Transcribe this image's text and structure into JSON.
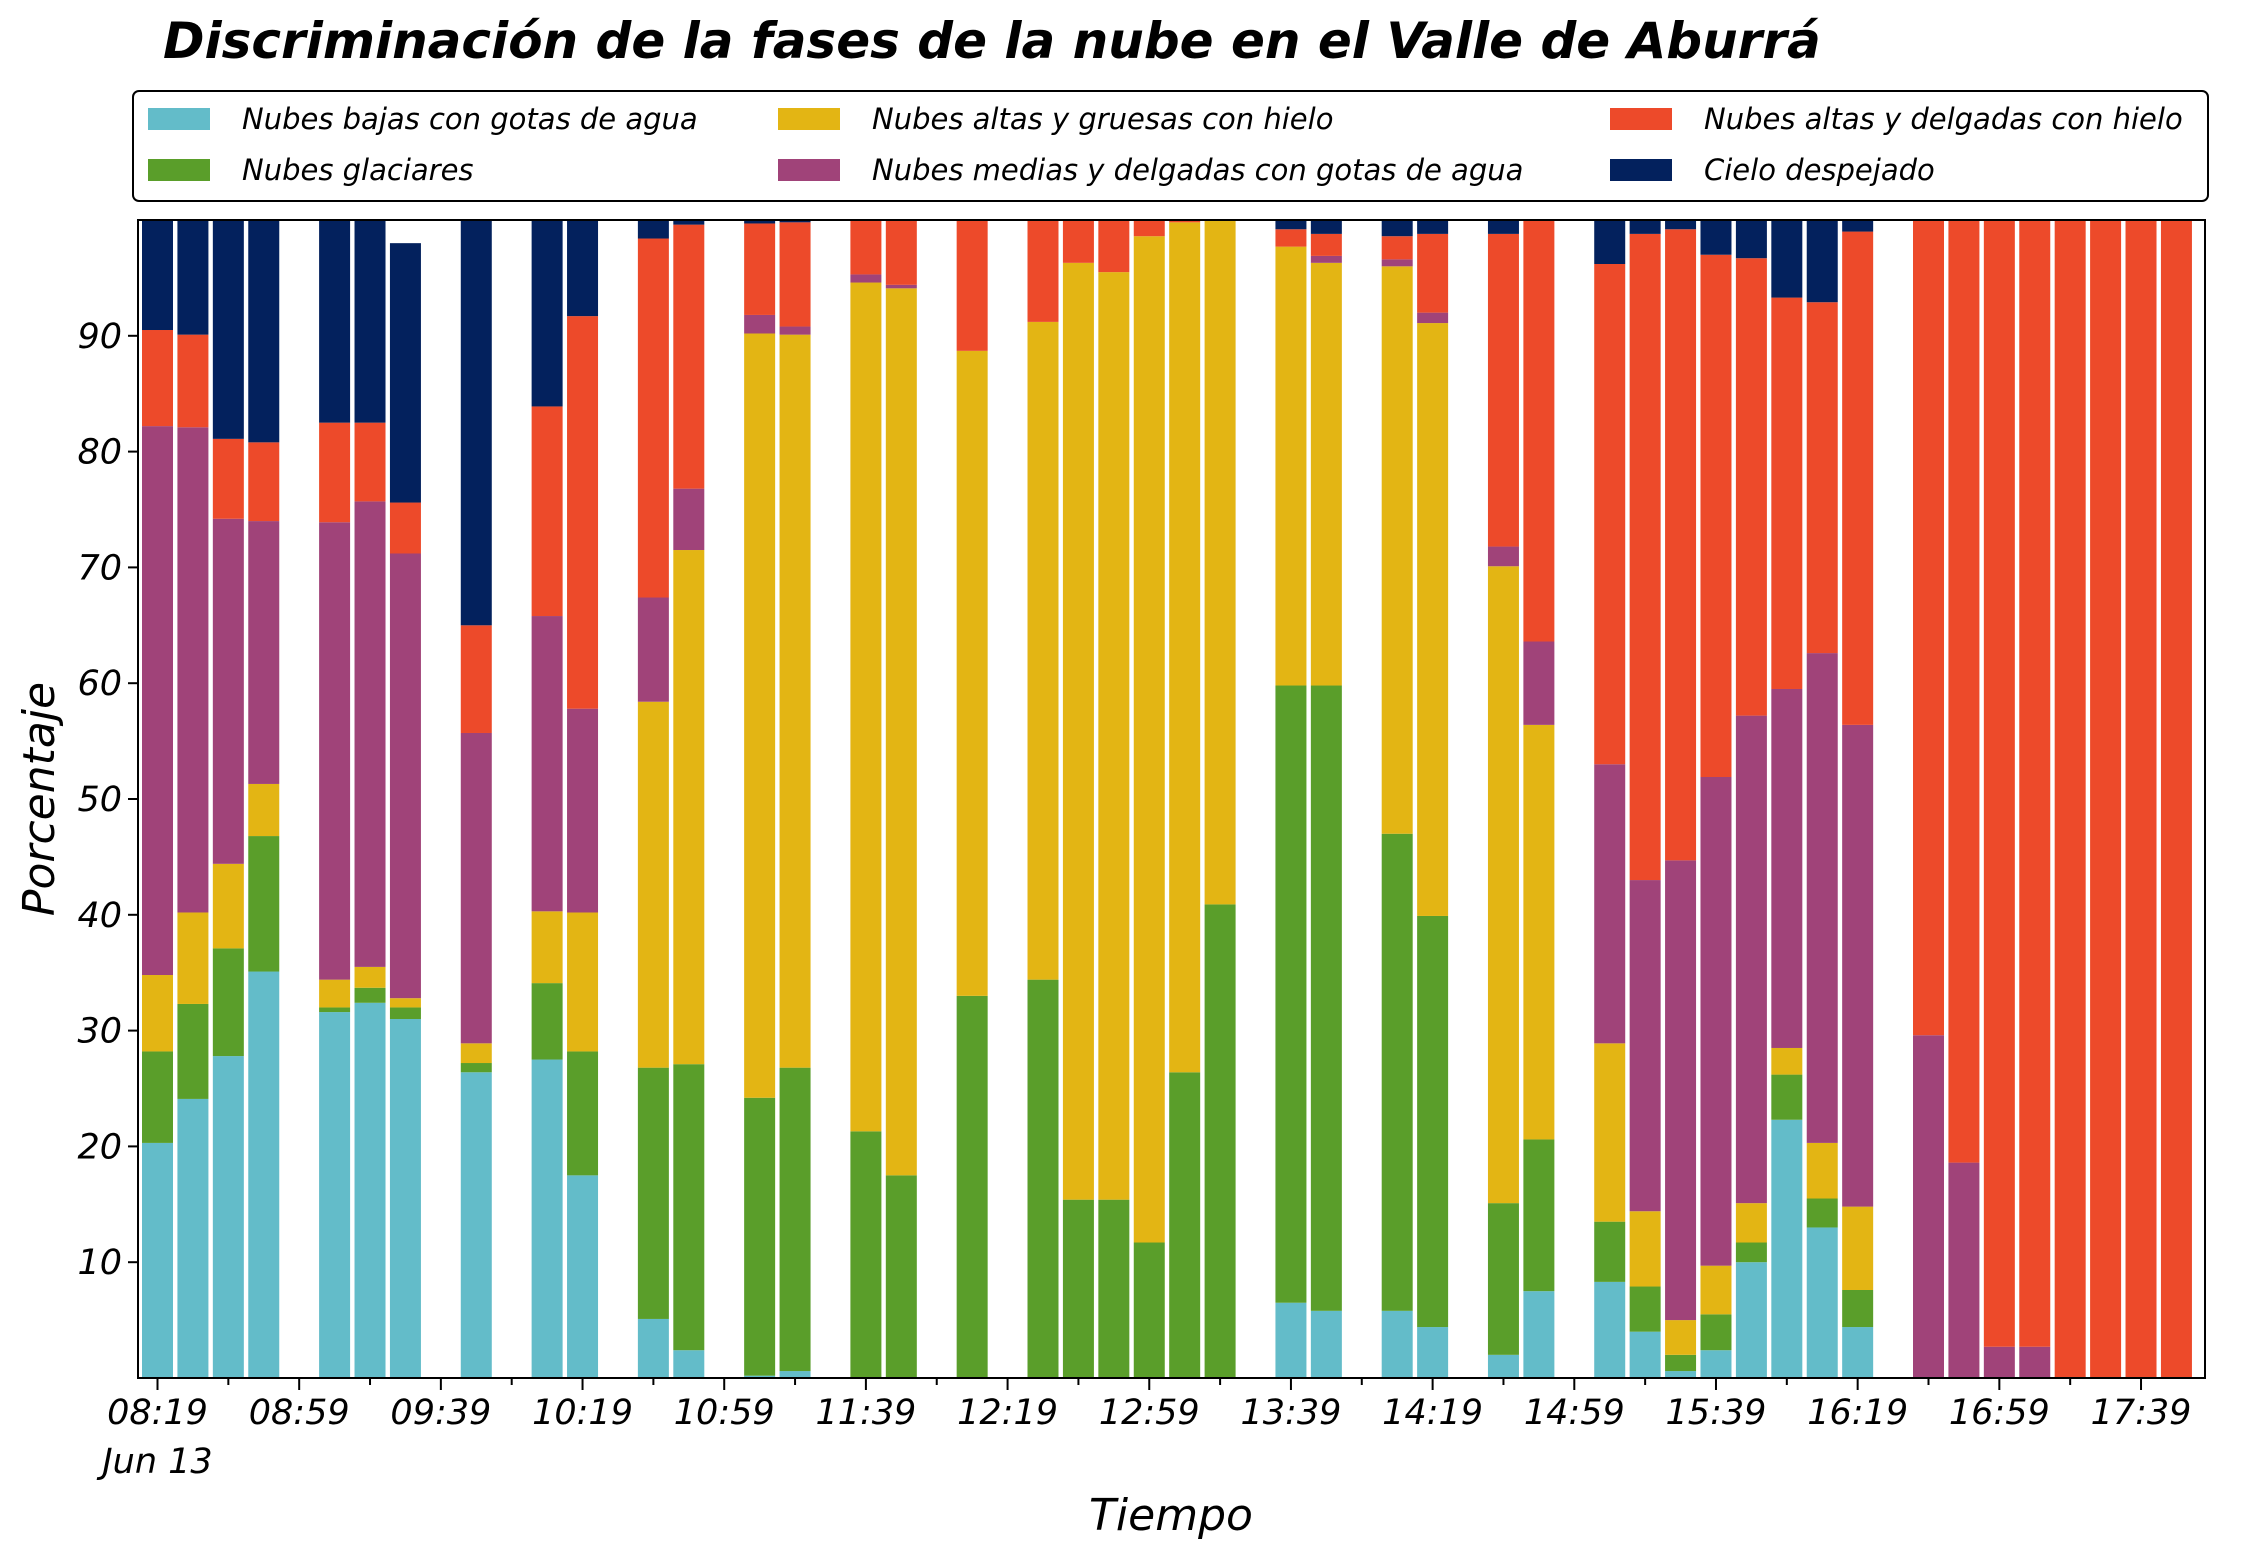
{
  "chart_data": {
    "type": "bar",
    "stacked": true,
    "title": "Discriminación de la fases de la nube en el Valle de Aburrá",
    "xlabel": "Tiempo",
    "ylabel": "Porcentaje",
    "ylim": [
      0,
      100
    ],
    "yticks": [
      10,
      20,
      30,
      40,
      50,
      60,
      70,
      80,
      90
    ],
    "xtick_labels": [
      "08:19",
      "08:59",
      "09:39",
      "10:19",
      "10:59",
      "11:39",
      "12:19",
      "12:59",
      "13:39",
      "14:19",
      "14:59",
      "15:39",
      "16:19",
      "16:59",
      "17:39"
    ],
    "xtick_date": "Jun 13",
    "slot_minutes": 10,
    "slots": 58,
    "grid": false,
    "legend_position": "top",
    "series": [
      {
        "name": "Nubes bajas con gotas de agua",
        "color": "#63bcc9"
      },
      {
        "name": "Nubes glaciares",
        "color": "#5a9e2a"
      },
      {
        "name": "Nubes altas y gruesas con hielo",
        "color": "#e3b514"
      },
      {
        "name": "Nubes medias y delgadas con gotas de agua",
        "color": "#a04379"
      },
      {
        "name": "Nubes altas y delgadas con hielo",
        "color": "#ed4a2a"
      },
      {
        "name": "Cielo despejado",
        "color": "#03215d"
      }
    ],
    "bars": [
      {
        "slot": 0,
        "values": [
          20.3,
          7.9,
          6.6,
          47.4,
          8.3,
          9.5
        ]
      },
      {
        "slot": 1,
        "values": [
          24.1,
          8.2,
          7.9,
          41.9,
          8.0,
          9.9
        ]
      },
      {
        "slot": 2,
        "values": [
          27.8,
          9.3,
          7.3,
          29.8,
          6.9,
          18.9
        ]
      },
      {
        "slot": 3,
        "values": [
          35.1,
          11.7,
          4.5,
          22.7,
          6.8,
          19.2
        ]
      },
      {
        "slot": 5,
        "values": [
          31.6,
          0.4,
          2.4,
          39.5,
          8.6,
          17.5
        ]
      },
      {
        "slot": 6,
        "values": [
          32.4,
          1.3,
          1.8,
          40.2,
          6.8,
          17.5
        ]
      },
      {
        "slot": 7,
        "values": [
          31.0,
          1.0,
          0.8,
          38.4,
          4.4,
          22.4
        ]
      },
      {
        "slot": 9,
        "values": [
          26.4,
          0.8,
          1.7,
          26.8,
          9.3,
          35.0
        ]
      },
      {
        "slot": 11,
        "values": [
          27.5,
          6.6,
          6.2,
          25.5,
          18.1,
          16.1
        ]
      },
      {
        "slot": 12,
        "values": [
          17.5,
          10.7,
          12.0,
          17.6,
          33.9,
          8.3
        ]
      },
      {
        "slot": 14,
        "values": [
          5.1,
          21.7,
          31.6,
          9.0,
          31.0,
          1.6
        ]
      },
      {
        "slot": 15,
        "values": [
          2.4,
          24.7,
          44.4,
          5.3,
          22.8,
          0.4
        ]
      },
      {
        "slot": 17,
        "values": [
          0.2,
          24.0,
          66.0,
          1.6,
          7.9,
          0.3
        ]
      },
      {
        "slot": 18,
        "values": [
          0.6,
          26.2,
          63.3,
          0.7,
          9.0,
          0.2
        ]
      },
      {
        "slot": 20,
        "values": [
          0,
          21.3,
          73.3,
          0.7,
          4.7,
          0
        ]
      },
      {
        "slot": 21,
        "values": [
          0,
          17.5,
          76.6,
          0.3,
          5.6,
          0
        ]
      },
      {
        "slot": 23,
        "values": [
          0,
          33.0,
          55.7,
          0,
          11.3,
          0
        ]
      },
      {
        "slot": 25,
        "values": [
          0,
          34.4,
          56.8,
          0,
          8.8,
          0
        ]
      },
      {
        "slot": 26,
        "values": [
          0,
          15.4,
          80.9,
          0,
          3.7,
          0
        ]
      },
      {
        "slot": 27,
        "values": [
          0,
          15.4,
          80.1,
          0,
          4.5,
          0
        ]
      },
      {
        "slot": 28,
        "values": [
          0,
          11.7,
          86.9,
          0,
          1.4,
          0
        ]
      },
      {
        "slot": 29,
        "values": [
          0,
          26.4,
          73.4,
          0,
          0.2,
          0
        ]
      },
      {
        "slot": 30,
        "values": [
          0,
          40.9,
          59.1,
          0,
          0,
          0
        ]
      },
      {
        "slot": 32,
        "values": [
          6.5,
          53.3,
          37.9,
          0,
          1.5,
          0.8
        ]
      },
      {
        "slot": 33,
        "values": [
          5.8,
          54.0,
          36.5,
          0.6,
          1.9,
          1.2
        ]
      },
      {
        "slot": 35,
        "values": [
          5.8,
          41.2,
          49.0,
          0.6,
          2.0,
          1.4
        ]
      },
      {
        "slot": 36,
        "values": [
          4.4,
          35.5,
          51.2,
          0.9,
          6.8,
          1.2
        ]
      },
      {
        "slot": 38,
        "values": [
          2.0,
          13.1,
          55.0,
          1.7,
          27.0,
          1.2
        ]
      },
      {
        "slot": 39,
        "values": [
          7.5,
          13.1,
          35.8,
          7.2,
          36.5,
          0.2
        ]
      },
      {
        "slot": 41,
        "values": [
          8.3,
          5.2,
          15.4,
          24.1,
          43.2,
          3.8
        ]
      },
      {
        "slot": 42,
        "values": [
          4.0,
          3.9,
          6.5,
          28.6,
          55.8,
          1.2
        ]
      },
      {
        "slot": 43,
        "values": [
          0.6,
          1.4,
          3.0,
          39.7,
          54.5,
          0.8
        ]
      },
      {
        "slot": 44,
        "values": [
          2.4,
          3.1,
          4.2,
          42.2,
          45.1,
          3.0
        ]
      },
      {
        "slot": 45,
        "values": [
          10.0,
          1.7,
          3.4,
          42.1,
          39.5,
          3.3
        ]
      },
      {
        "slot": 46,
        "values": [
          22.3,
          3.9,
          2.3,
          31.0,
          33.8,
          6.7
        ]
      },
      {
        "slot": 47,
        "values": [
          13.0,
          2.5,
          4.8,
          42.3,
          30.3,
          7.1
        ]
      },
      {
        "slot": 48,
        "values": [
          4.4,
          3.2,
          7.2,
          41.6,
          42.6,
          1.0
        ]
      },
      {
        "slot": 50,
        "values": [
          0,
          0,
          0,
          29.6,
          70.4,
          0
        ]
      },
      {
        "slot": 51,
        "values": [
          0,
          0,
          0,
          18.6,
          81.4,
          0
        ]
      },
      {
        "slot": 52,
        "values": [
          0,
          0,
          0,
          2.7,
          97.3,
          0
        ]
      },
      {
        "slot": 53,
        "values": [
          0,
          0,
          0,
          2.7,
          97.3,
          0
        ]
      },
      {
        "slot": 54,
        "values": [
          0,
          0,
          0,
          0,
          100,
          0
        ]
      },
      {
        "slot": 55,
        "values": [
          0,
          0,
          0,
          0,
          100,
          0
        ]
      },
      {
        "slot": 56,
        "values": [
          0,
          0,
          0,
          0,
          100,
          0
        ]
      },
      {
        "slot": 57,
        "values": [
          0,
          0,
          0,
          0,
          100,
          0
        ]
      }
    ]
  }
}
